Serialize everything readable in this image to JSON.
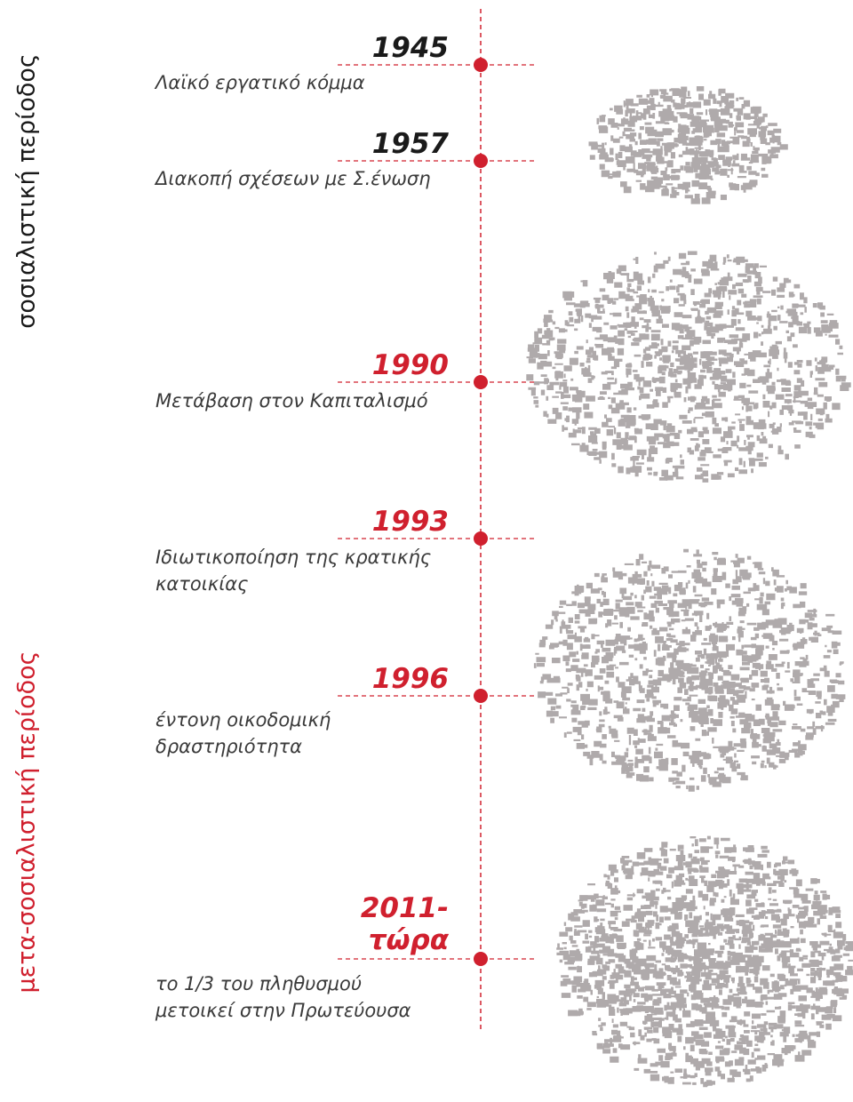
{
  "periods": [
    {
      "label": "σοσιαλιστική περίοδος",
      "color": "#1a1a1a"
    },
    {
      "label": "μετα-σοσιαλιστική περίοδος",
      "color": "#d0202e"
    }
  ],
  "events": [
    {
      "year": "1945",
      "description": "Λαϊκό εργατικό κόμμα",
      "color": "#1a1a1a"
    },
    {
      "year": "1957",
      "description": "Διακοπή σχέσεων με Σ.ένωση",
      "color": "#1a1a1a"
    },
    {
      "year": "1990",
      "description": "Μετάβαση στον Καπιταλισμό",
      "color": "#d0202e"
    },
    {
      "year": "1993",
      "description": "Ιδιωτικοποίηση της κρατικής\nκατοικίας",
      "color": "#d0202e"
    },
    {
      "year": "1996",
      "description": "έντονη οικοδομική\nδραστηριότητα",
      "color": "#d0202e"
    },
    {
      "year": "2011-\nτώρα",
      "description": "το 1/3 του πληθυσμού\nμετοικεί στην Πρωτεύουσα",
      "color": "#d0202e"
    }
  ]
}
